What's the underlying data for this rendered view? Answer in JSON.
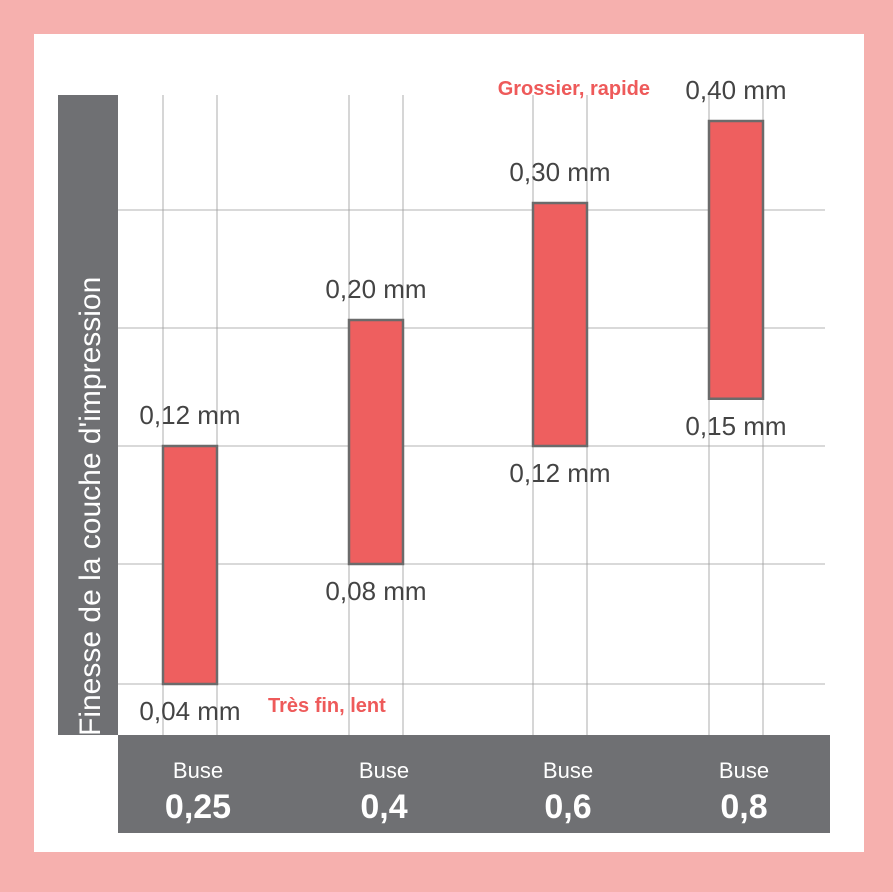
{
  "chart_data": {
    "type": "bar",
    "ylabel": "Finesse de la couche d'impression",
    "categories": [
      {
        "prefix": "Buse",
        "size": "0,25"
      },
      {
        "prefix": "Buse",
        "size": "0,4"
      },
      {
        "prefix": "Buse",
        "size": "0,6"
      },
      {
        "prefix": "Buse",
        "size": "0,8"
      }
    ],
    "ranges": [
      {
        "min": 0.04,
        "max": 0.12,
        "min_label": "0,04 mm",
        "max_label": "0,12 mm"
      },
      {
        "min": 0.08,
        "max": 0.2,
        "min_label": "0,08 mm",
        "max_label": "0,20 mm"
      },
      {
        "min": 0.12,
        "max": 0.3,
        "min_label": "0,12 mm",
        "max_label": "0,30 mm"
      },
      {
        "min": 0.15,
        "max": 0.4,
        "min_label": "0,15 mm",
        "max_label": "0,40 mm"
      }
    ],
    "ylim": [
      0.04,
      0.4
    ],
    "grid": true,
    "annotations": {
      "top": "Grossier, rapide",
      "bottom": "Très fin, lent"
    }
  },
  "colors": {
    "page_border": "#f6b0ae",
    "bar_fill": "#ee5f5f",
    "bar_stroke": "#6b6b6b",
    "axis_band": "#6f7073",
    "annotation": "#ee5a5a"
  }
}
